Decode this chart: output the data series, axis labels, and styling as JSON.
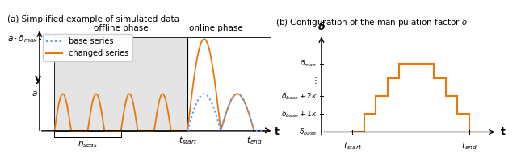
{
  "left_title": "(a) Simplified example of simulated data",
  "right_title": "(b) Configuration of the manipulation factor $\\delta$",
  "offline_label": "offline phase",
  "online_label": "online phase",
  "base_label": "base series",
  "changed_label": "changed series",
  "orange_color": "#E8780A",
  "blue_color": "#5599FF",
  "bg_offline": "#E4E4E4",
  "n_offline_cycles": 4,
  "delta_max_ratio": 2.5,
  "n_seas_bracket_cycles": 2
}
